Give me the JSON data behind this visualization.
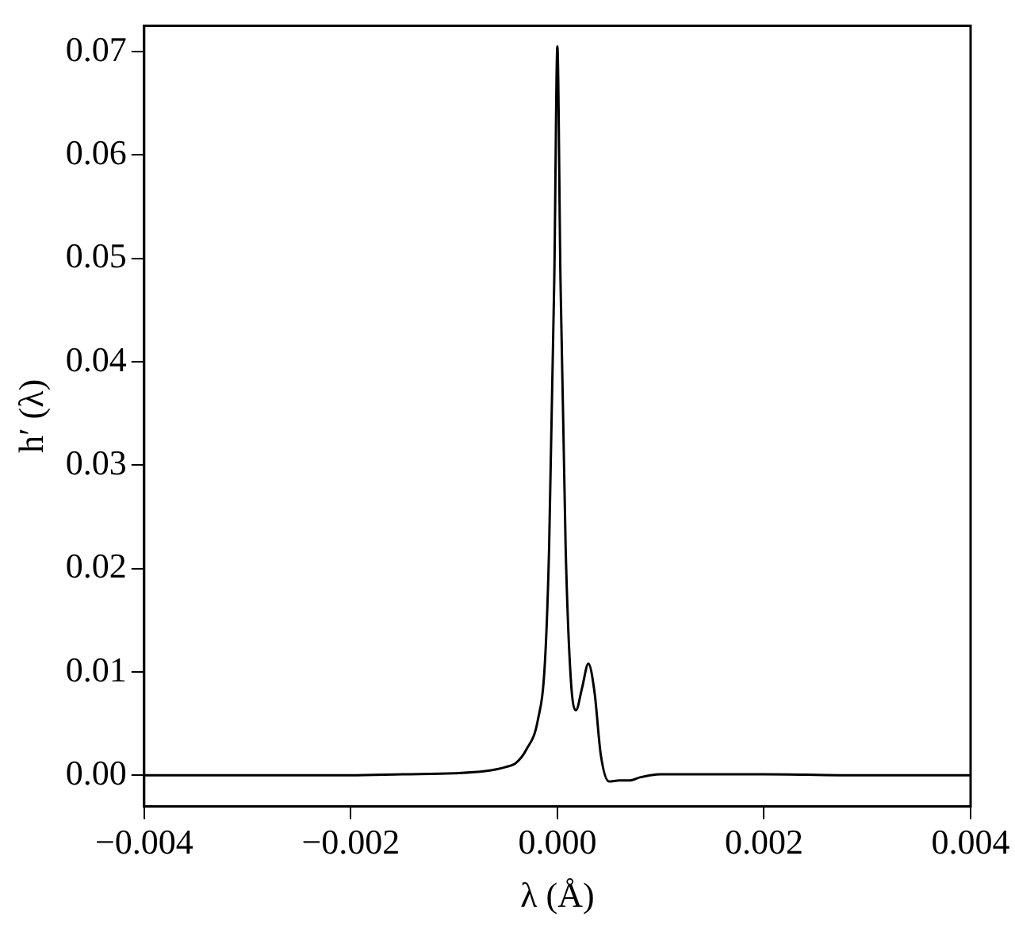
{
  "chart_data": {
    "type": "line",
    "xlabel": "λ (Å)",
    "ylabel": "h′ (λ)",
    "xlim": [
      -0.004,
      0.004
    ],
    "xticks": [
      {
        "value": -0.004,
        "label": "−0.004"
      },
      {
        "value": -0.002,
        "label": "−0.002"
      },
      {
        "value": 0,
        "label": "0.000"
      },
      {
        "value": 0.002,
        "label": "0.002"
      },
      {
        "value": 0.004,
        "label": "0.004"
      }
    ],
    "ylim": [
      -0.003,
      0.0725
    ],
    "yticks": [
      {
        "value": 0,
        "label": "0.00"
      },
      {
        "value": 0.01,
        "label": "0.01"
      },
      {
        "value": 0.02,
        "label": "0.02"
      },
      {
        "value": 0.03,
        "label": "0.03"
      },
      {
        "value": 0.04,
        "label": "0.04"
      },
      {
        "value": 0.05,
        "label": "0.05"
      },
      {
        "value": 0.06,
        "label": "0.06"
      },
      {
        "value": 0.07,
        "label": "0.07"
      }
    ],
    "grid": false,
    "legend": false,
    "marker": "none",
    "line_style": "solid",
    "series": [
      {
        "color": "#000000",
        "x": [
          -0.004,
          -0.003,
          -0.002,
          -0.0015,
          -0.001,
          -0.0007,
          -0.0005,
          -0.0004,
          -0.0003,
          -0.00019,
          -0.00012,
          -8e-05,
          -3e-05,
          0,
          3e-05,
          8e-05,
          0.00013,
          0.00018,
          0.00024,
          0.0003,
          0.00036,
          0.00042,
          0.0005,
          0.0006,
          0.0007,
          0.0008,
          0.0009,
          0.001,
          0.0015,
          0.002,
          0.003,
          0.004
        ],
        "values": [
          0,
          0,
          0,
          0.0001,
          0.0002,
          0.0004,
          0.0008,
          0.0012,
          0.0025,
          0.0053,
          0.011,
          0.022,
          0.048,
          0.0705,
          0.048,
          0.022,
          0.0093,
          0.0063,
          0.0085,
          0.0108,
          0.008,
          0.002,
          -0.0006,
          -0.0005,
          -0.0005,
          -0.0002,
          0,
          0.0001,
          0.0001,
          0.0001,
          0,
          0
        ]
      }
    ]
  }
}
